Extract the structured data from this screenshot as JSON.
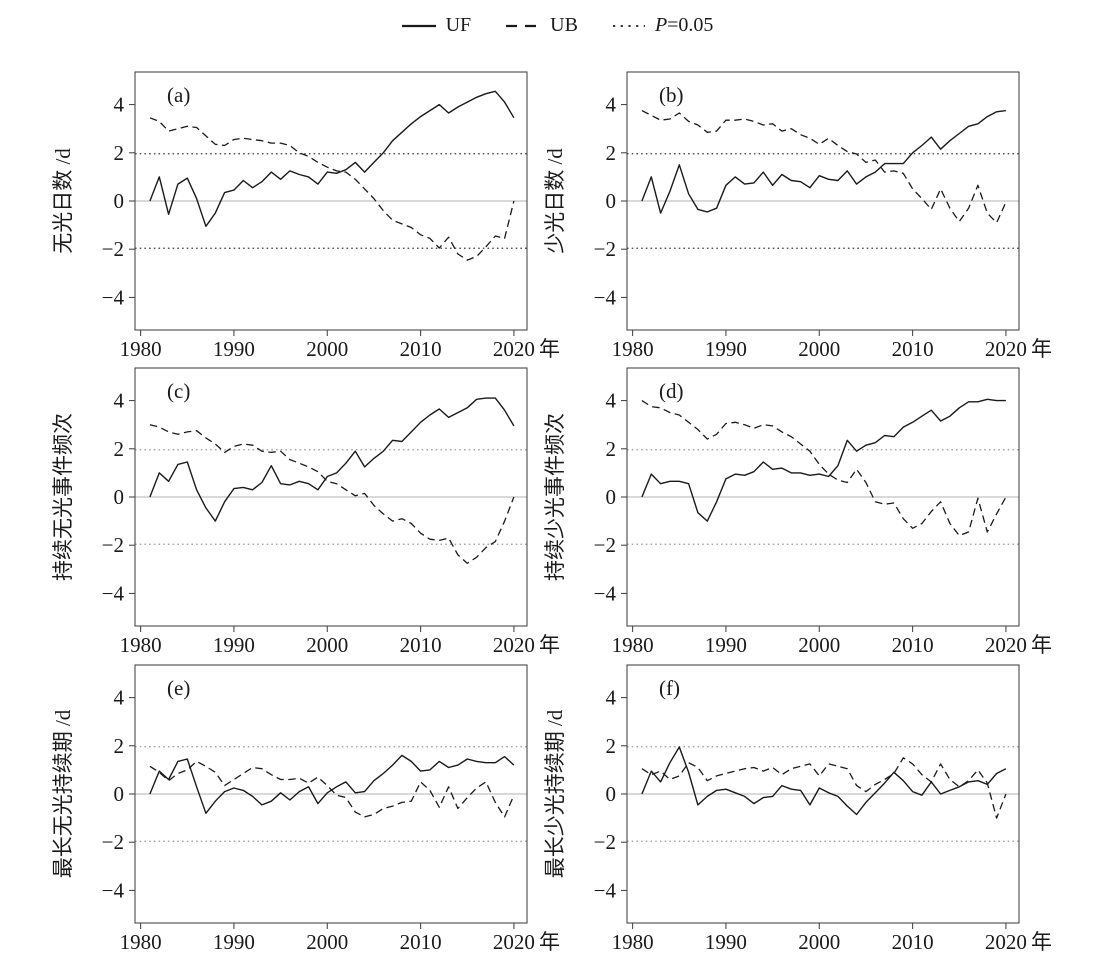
{
  "legend": {
    "items": [
      {
        "label": "UF",
        "line_style": "solid"
      },
      {
        "label": "UB",
        "line_style": "dashed"
      },
      {
        "label_italic": "P",
        "label_rest": "=0.05",
        "line_style": "dotted"
      }
    ]
  },
  "axes": {
    "x_ticks": [
      1980,
      1990,
      2000,
      2010,
      2020
    ],
    "y_ticks": [
      -4,
      -2,
      0,
      2,
      4
    ],
    "x_unit_suffix": "年",
    "xlim": [
      1979.4,
      2021.4
    ],
    "ylim": [
      -5.35,
      5.35
    ],
    "critical_value": 1.96
  },
  "colors": {
    "line": "#1a1a1a",
    "frame": "#4a4a4a",
    "zero_line": "#c2c2c2",
    "crit_dark": "#3a3a3a",
    "crit_light": "#9a9a9a"
  },
  "chart_data": {
    "type": "line",
    "x_label_unit": "年",
    "series_names": [
      "UF",
      "UB"
    ],
    "x": [
      1981,
      1982,
      1983,
      1984,
      1985,
      1986,
      1987,
      1988,
      1989,
      1990,
      1991,
      1992,
      1993,
      1994,
      1995,
      1996,
      1997,
      1998,
      1999,
      2000,
      2001,
      2002,
      2003,
      2004,
      2005,
      2006,
      2007,
      2008,
      2009,
      2010,
      2011,
      2012,
      2013,
      2014,
      2015,
      2016,
      2017,
      2018,
      2019,
      2020
    ],
    "panels": [
      {
        "id": "a",
        "letter": "(a)",
        "ylabel": "无光日数 /d",
        "UF": [
          0,
          1.0,
          -0.55,
          0.7,
          0.95,
          0.1,
          -1.05,
          -0.5,
          0.35,
          0.45,
          0.85,
          0.55,
          0.8,
          1.2,
          0.9,
          1.25,
          1.1,
          1.0,
          0.7,
          1.2,
          1.15,
          1.3,
          1.6,
          1.2,
          1.6,
          2.0,
          2.5,
          2.85,
          3.2,
          3.5,
          3.75,
          4.0,
          3.65,
          3.9,
          4.1,
          4.3,
          4.45,
          4.55,
          4.1,
          3.45
        ],
        "UB": [
          3.45,
          3.3,
          2.9,
          3.0,
          3.1,
          3.05,
          2.7,
          2.35,
          2.3,
          2.55,
          2.6,
          2.55,
          2.5,
          2.4,
          2.4,
          2.3,
          2.0,
          1.85,
          1.6,
          1.4,
          1.25,
          1.2,
          0.9,
          0.5,
          0.1,
          -0.4,
          -0.8,
          -0.95,
          -1.1,
          -1.4,
          -1.55,
          -1.95,
          -1.5,
          -2.2,
          -2.45,
          -2.3,
          -1.9,
          -1.45,
          -1.55,
          0.0
        ]
      },
      {
        "id": "b",
        "letter": "(b)",
        "ylabel": "少光日数 /d",
        "UF": [
          0,
          1.0,
          -0.5,
          0.4,
          1.5,
          0.3,
          -0.35,
          -0.45,
          -0.3,
          0.65,
          1.0,
          0.7,
          0.75,
          1.2,
          0.65,
          1.1,
          0.85,
          0.8,
          0.55,
          1.05,
          0.9,
          0.85,
          1.25,
          0.7,
          1.0,
          1.2,
          1.55,
          1.55,
          1.55,
          2.0,
          2.3,
          2.65,
          2.15,
          2.5,
          2.8,
          3.1,
          3.2,
          3.5,
          3.7,
          3.75
        ],
        "UB": [
          3.75,
          3.55,
          3.35,
          3.4,
          3.65,
          3.3,
          3.15,
          2.85,
          2.9,
          3.35,
          3.35,
          3.4,
          3.3,
          3.15,
          3.2,
          2.9,
          3.0,
          2.75,
          2.6,
          2.35,
          2.6,
          2.3,
          2.05,
          1.95,
          1.6,
          1.7,
          1.2,
          1.25,
          1.15,
          0.5,
          0.1,
          -0.35,
          0.5,
          -0.3,
          -0.85,
          -0.3,
          0.65,
          -0.5,
          -0.9,
          -0.05
        ]
      },
      {
        "id": "c",
        "letter": "(c)",
        "ylabel": "持续无光事件频次",
        "UF": [
          0,
          1.0,
          0.65,
          1.35,
          1.45,
          0.3,
          -0.45,
          -1.0,
          -0.2,
          0.35,
          0.4,
          0.3,
          0.6,
          1.3,
          0.55,
          0.5,
          0.65,
          0.55,
          0.3,
          0.85,
          1.0,
          1.4,
          1.9,
          1.25,
          1.6,
          1.9,
          2.35,
          2.3,
          2.7,
          3.1,
          3.4,
          3.65,
          3.3,
          3.5,
          3.7,
          4.05,
          4.1,
          4.1,
          3.6,
          2.95
        ],
        "UB": [
          3.0,
          2.9,
          2.7,
          2.6,
          2.7,
          2.75,
          2.45,
          2.2,
          1.85,
          2.1,
          2.2,
          2.15,
          1.9,
          1.85,
          1.9,
          1.55,
          1.4,
          1.25,
          1.05,
          0.65,
          0.55,
          0.3,
          0.05,
          0.15,
          -0.35,
          -0.7,
          -1.0,
          -0.9,
          -1.1,
          -1.5,
          -1.75,
          -1.8,
          -1.7,
          -2.4,
          -2.75,
          -2.5,
          -2.1,
          -1.85,
          -1.0,
          0.0
        ]
      },
      {
        "id": "d",
        "letter": "(d)",
        "ylabel": "持续少光事件频次",
        "UF": [
          0,
          0.95,
          0.55,
          0.65,
          0.65,
          0.55,
          -0.65,
          -1.0,
          -0.2,
          0.75,
          0.95,
          0.9,
          1.05,
          1.45,
          1.15,
          1.2,
          1.0,
          1.0,
          0.9,
          0.95,
          0.85,
          1.3,
          2.35,
          1.9,
          2.15,
          2.25,
          2.55,
          2.5,
          2.9,
          3.1,
          3.35,
          3.6,
          3.15,
          3.35,
          3.7,
          3.95,
          3.95,
          4.05,
          4.0,
          4.0
        ],
        "UB": [
          4.0,
          3.75,
          3.7,
          3.5,
          3.4,
          3.1,
          2.8,
          2.4,
          2.6,
          3.05,
          3.1,
          3.0,
          2.85,
          3.0,
          2.95,
          2.7,
          2.5,
          2.2,
          1.9,
          1.35,
          0.95,
          0.7,
          0.6,
          1.15,
          0.6,
          -0.2,
          -0.3,
          -0.25,
          -0.9,
          -1.3,
          -1.1,
          -0.6,
          -0.2,
          -1.1,
          -1.6,
          -1.45,
          -0.05,
          -1.45,
          -0.7,
          0.0
        ]
      },
      {
        "id": "e",
        "letter": "(e)",
        "ylabel": "最长无光持续期 /d",
        "UF": [
          0,
          0.95,
          0.6,
          1.35,
          1.45,
          0.3,
          -0.8,
          -0.3,
          0.1,
          0.25,
          0.15,
          -0.1,
          -0.45,
          -0.3,
          0.05,
          -0.25,
          0.1,
          0.3,
          -0.4,
          0.05,
          0.3,
          0.5,
          0.05,
          0.1,
          0.55,
          0.85,
          1.2,
          1.6,
          1.35,
          0.95,
          1.0,
          1.35,
          1.1,
          1.2,
          1.45,
          1.35,
          1.3,
          1.3,
          1.55,
          1.2
        ],
        "UB": [
          1.15,
          0.9,
          0.55,
          0.85,
          1.0,
          1.35,
          1.15,
          0.9,
          0.35,
          0.6,
          0.85,
          1.1,
          1.05,
          0.8,
          0.6,
          0.6,
          0.65,
          0.45,
          0.7,
          0.35,
          -0.05,
          -0.15,
          -0.75,
          -0.95,
          -0.85,
          -0.6,
          -0.5,
          -0.35,
          -0.3,
          0.5,
          0.15,
          -0.55,
          0.3,
          -0.6,
          -0.15,
          0.25,
          0.5,
          -0.35,
          -0.95,
          -0.05
        ]
      },
      {
        "id": "f",
        "letter": "(f)",
        "ylabel": "最长少光持续期 /d",
        "UF": [
          0,
          0.95,
          0.5,
          1.3,
          1.95,
          0.9,
          -0.45,
          -0.1,
          0.15,
          0.2,
          0.05,
          -0.1,
          -0.4,
          -0.15,
          -0.1,
          0.35,
          0.2,
          0.15,
          -0.45,
          0.25,
          0.05,
          -0.1,
          -0.5,
          -0.85,
          -0.35,
          0.05,
          0.45,
          0.9,
          0.55,
          0.1,
          -0.05,
          0.5,
          0.0,
          0.15,
          0.3,
          0.5,
          0.55,
          0.4,
          0.85,
          1.05
        ],
        "UB": [
          1.05,
          0.8,
          0.95,
          0.6,
          0.75,
          1.3,
          1.1,
          0.55,
          0.75,
          0.85,
          0.95,
          1.05,
          1.1,
          0.95,
          1.1,
          0.8,
          1.05,
          1.15,
          1.25,
          0.75,
          1.25,
          1.15,
          1.05,
          0.35,
          0.1,
          0.4,
          0.6,
          0.85,
          1.5,
          1.25,
          0.8,
          0.5,
          1.25,
          0.6,
          0.3,
          0.55,
          1.0,
          0.45,
          -1.0,
          0.0
        ]
      }
    ]
  }
}
